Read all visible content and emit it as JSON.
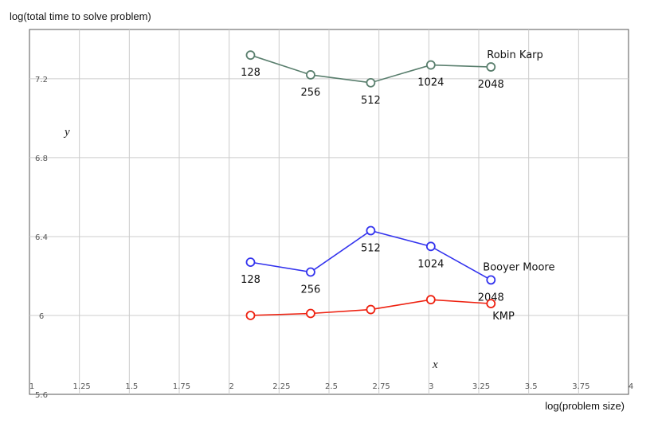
{
  "chart_data": {
    "type": "line",
    "ylabel": "log(total time to solve problem)",
    "xlabel": "log(problem size)",
    "x_var": "x",
    "y_var": "y",
    "xlim": [
      1,
      4
    ],
    "ylim": [
      5.6,
      7.45
    ],
    "x_ticks": [
      1,
      1.25,
      1.5,
      1.75,
      2,
      2.25,
      2.5,
      2.75,
      3,
      3.25,
      3.5,
      3.75,
      4
    ],
    "x_tick_labels": [
      "1",
      "1.25",
      "1.5",
      "1.75",
      "2",
      "2.25",
      "2.5",
      "2.75",
      "3",
      "3.25",
      "3.5",
      "3.75",
      "4"
    ],
    "y_ticks": [
      5.6,
      6,
      6.4,
      6.8,
      7.2
    ],
    "y_tick_labels": [
      "5.6",
      "6",
      "6.4",
      "6.8",
      "7.2"
    ],
    "grid": true,
    "series": [
      {
        "name": "Robin Karp",
        "color": "#5a7f6e",
        "x": [
          2.107,
          2.408,
          2.709,
          3.01,
          3.311
        ],
        "y": [
          7.32,
          7.22,
          7.18,
          7.27,
          7.26
        ],
        "point_labels": [
          "128",
          "256",
          "512",
          "1024",
          "2048"
        ],
        "label_pos": [
          "below",
          "below",
          "below",
          "below",
          "below"
        ]
      },
      {
        "name": "Booyer Moore",
        "color": "#3333ee",
        "x": [
          2.107,
          2.408,
          2.709,
          3.01,
          3.311
        ],
        "y": [
          6.27,
          6.22,
          6.43,
          6.35,
          6.18
        ],
        "point_labels": [
          "128",
          "256",
          "512",
          "1024",
          "2048"
        ],
        "label_pos": [
          "below",
          "below",
          "below",
          "below",
          "below"
        ]
      },
      {
        "name": "KMP",
        "color": "#ee2211",
        "x": [
          2.107,
          2.408,
          2.709,
          3.01,
          3.311
        ],
        "y": [
          6.0,
          6.01,
          6.03,
          6.08,
          6.06
        ],
        "point_labels": [],
        "label_pos": []
      }
    ]
  }
}
